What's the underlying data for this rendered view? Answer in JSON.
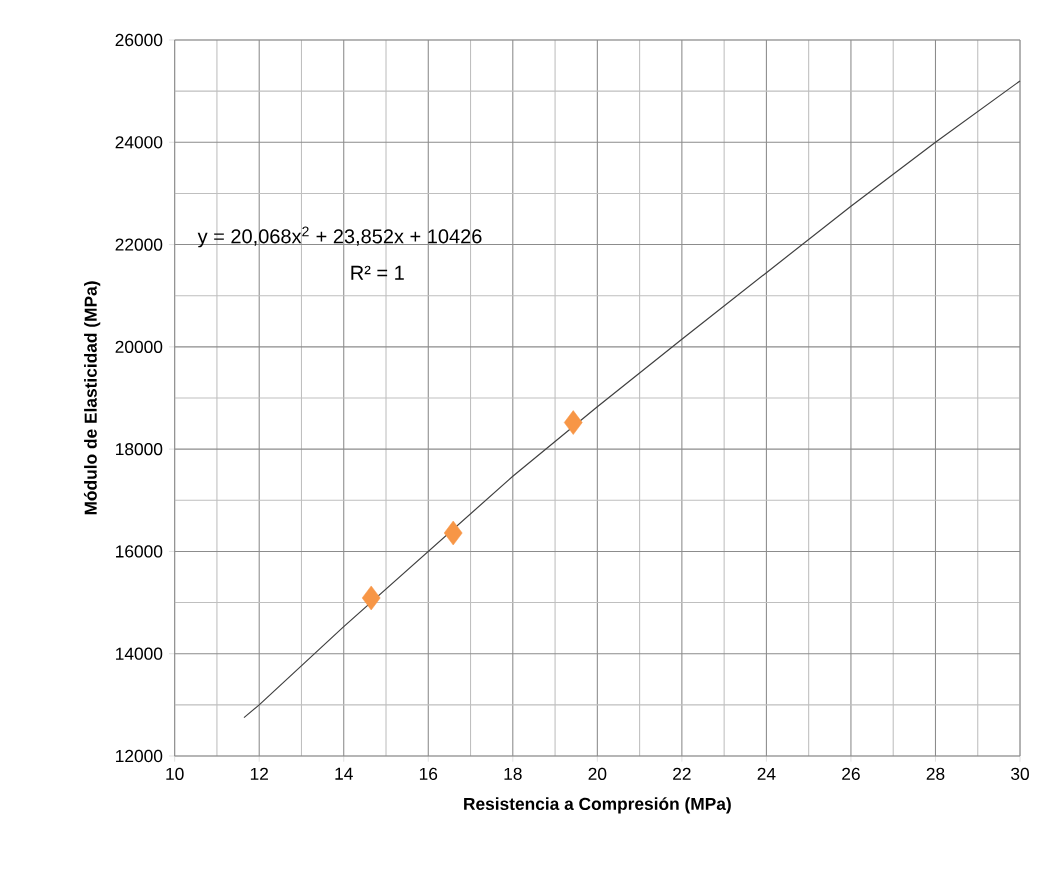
{
  "chart_data": {
    "type": "scatter",
    "xlabel": "Resistencia a Compresión  (MPa)",
    "ylabel": "Módulo de Elasticidad  (MPa)",
    "series": [
      {
        "color": "#f79646",
        "marker": "diamond",
        "x": [
          14.65,
          16.59,
          19.43
        ],
        "values": [
          15090,
          16360,
          18520
        ]
      },
      {
        "type": "line",
        "color": "#404040",
        "marker": "none",
        "line_style": "solid",
        "x": [
          11.64,
          12,
          14,
          16,
          18,
          20,
          22,
          24,
          26,
          28,
          30
        ],
        "values": [
          12750,
          13000,
          14530,
          16000,
          17470,
          18830,
          20150,
          21450,
          22750,
          24000,
          25200
        ]
      }
    ],
    "annotations": [
      "y = 20,068x$^{2}$ + 23,852x + 10426",
      "R² = 1"
    ],
    "xlim": [
      10,
      30
    ],
    "xticks": [
      10,
      12,
      14,
      16,
      18,
      20,
      22,
      24,
      26,
      28,
      30
    ],
    "ylim": [
      12000,
      26000
    ],
    "yticks": [
      12000,
      14000,
      16000,
      18000,
      20000,
      22000,
      24000,
      26000
    ],
    "grid": true
  }
}
